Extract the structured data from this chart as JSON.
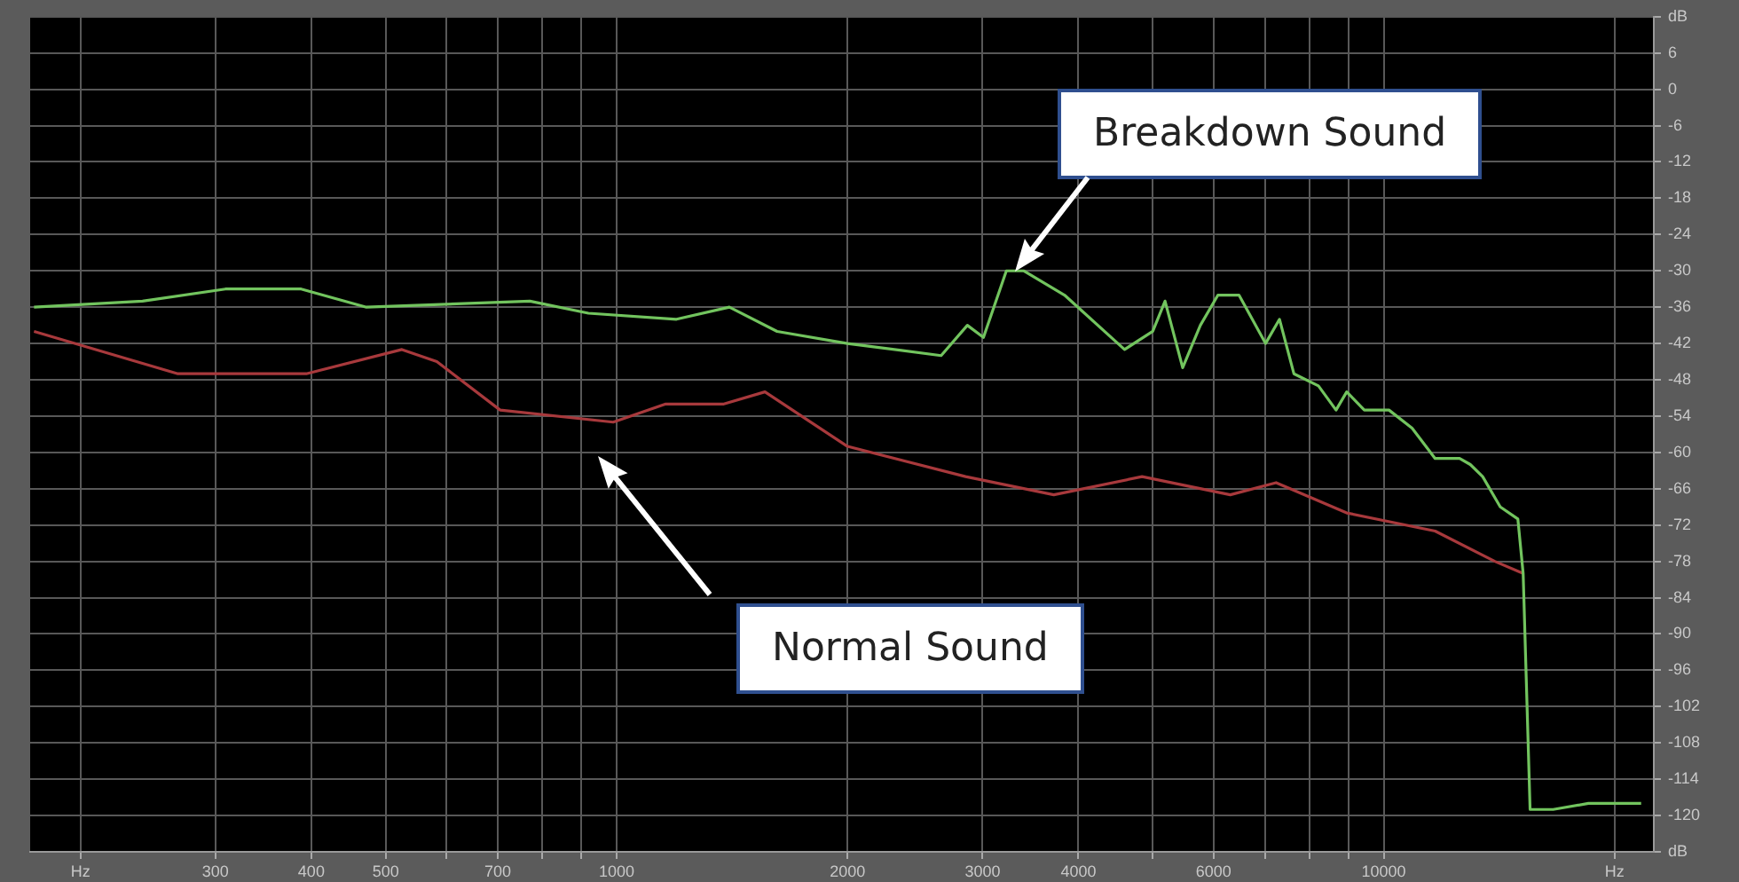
{
  "chart_data": {
    "type": "line",
    "log": "x",
    "grid": true,
    "legend": false,
    "marker": "none",
    "line_style": "solid",
    "xlim": [
      172,
      22500
    ],
    "xticks": [
      {
        "value": 200,
        "label": "Hz"
      },
      300,
      400,
      500,
      {
        "value": 600,
        "label": null
      },
      700,
      {
        "value": 800,
        "label": null
      },
      {
        "value": 900,
        "label": null
      },
      1000,
      2000,
      3000,
      4000,
      {
        "value": 5000,
        "label": null
      },
      6000,
      {
        "value": 7000,
        "label": null
      },
      {
        "value": 8000,
        "label": null
      },
      {
        "value": 9000,
        "label": null
      },
      10000,
      {
        "value": 20000,
        "label": "Hz"
      }
    ],
    "ylim": [
      -126,
      12
    ],
    "yticks": [
      {
        "value": 12,
        "label": "dB"
      },
      6,
      0,
      -6,
      -12,
      -18,
      -24,
      -30,
      -36,
      -42,
      -48,
      -54,
      -60,
      -66,
      -72,
      -78,
      -84,
      -90,
      -96,
      -102,
      -108,
      -114,
      -120,
      {
        "value": -126,
        "label": "dB"
      }
    ],
    "series": [
      {
        "color": "#72c45e",
        "x": [
          174,
          241,
          309,
          388,
          472,
          771,
          919,
          1197,
          1403,
          1619,
          2000,
          2649,
          2866,
          3008,
          3222,
          3397,
          3836,
          4594,
          5000,
          5188,
          5470,
          5768,
          6081,
          6477,
          7015,
          7315,
          7638,
          8222,
          8668,
          8950,
          9436,
          10160,
          10890,
          11670,
          12560,
          12970,
          13460,
          14190,
          14960,
          15200,
          15520,
          16630,
          18490,
          21660
        ],
        "values": [
          -36,
          -35,
          -33,
          -33,
          -36,
          -35,
          -37,
          -38,
          -36,
          -40,
          -42,
          -44,
          -39,
          -41,
          -30,
          -30,
          -34,
          -43,
          -40,
          -35,
          -46,
          -39,
          -34,
          -34,
          -42,
          -38,
          -47,
          -49,
          -53,
          -50,
          -53,
          -53,
          -56,
          -61,
          -61,
          -62,
          -64,
          -69,
          -71,
          -80,
          -119,
          -119,
          -118,
          -118
        ]
      },
      {
        "color": "#a8393c",
        "x": [
          174,
          268,
          394,
          525,
          583,
          705,
          990,
          1159,
          1380,
          1561,
          2000,
          2851,
          3715,
          4842,
          6310,
          7240,
          8950,
          11670,
          13960,
          15200
        ],
        "values": [
          -40,
          -47,
          -47,
          -43,
          -45,
          -53,
          -55,
          -52,
          -52,
          -50,
          -59,
          -64,
          -67,
          -64,
          -67,
          -65,
          -70,
          -73,
          -78,
          -80
        ]
      }
    ],
    "annotations": [
      "Breakdown Sound",
      "Normal Sound"
    ]
  }
}
